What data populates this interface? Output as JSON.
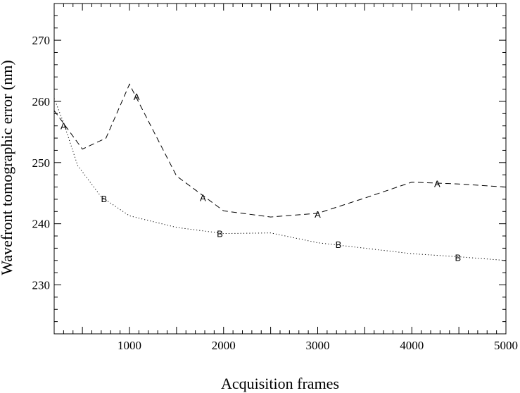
{
  "chart_data": {
    "type": "line",
    "title": "",
    "xlabel": "Acquisition frames",
    "ylabel": "Wavefront tomographic error (nm)",
    "xlim": [
      200,
      5000
    ],
    "ylim": [
      222,
      276
    ],
    "xticks": [
      1000,
      2000,
      3000,
      4000,
      5000
    ],
    "yticks": [
      230,
      240,
      250,
      260,
      270
    ],
    "grid": false,
    "legend": "none",
    "series": [
      {
        "name": "A",
        "line_style": "dashed",
        "color": "#000000",
        "x": [
          200,
          500,
          750,
          1000,
          1500,
          2000,
          2500,
          3000,
          3500,
          4000,
          4500,
          5000
        ],
        "y": [
          258.5,
          252.2,
          254.0,
          262.8,
          247.8,
          242.1,
          241.1,
          241.7,
          244.2,
          246.8,
          246.5,
          246.0
        ],
        "markers": {
          "x": [
            300,
            1075,
            1780,
            3000,
            4270
          ],
          "y": [
            256.0,
            260.8,
            244.3,
            241.6,
            246.6
          ]
        }
      },
      {
        "name": "B",
        "line_style": "dotted",
        "color": "#000000",
        "x": [
          200,
          300,
          450,
          700,
          1000,
          1500,
          2000,
          2500,
          3000,
          3500,
          4000,
          4500,
          5000
        ],
        "y": [
          260.5,
          256.5,
          249.5,
          244.4,
          241.3,
          239.4,
          238.4,
          238.5,
          236.9,
          236.0,
          235.1,
          234.6,
          234.0
        ],
        "markers": {
          "x": [
            730,
            1960,
            3220,
            4490
          ],
          "y": [
            244.1,
            238.4,
            236.6,
            234.5
          ]
        }
      }
    ]
  }
}
